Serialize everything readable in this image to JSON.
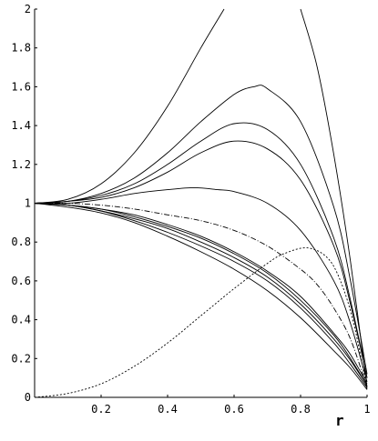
{
  "chart_data": {
    "type": "line",
    "title": "",
    "xlabel": "r",
    "ylabel": "",
    "xlim": [
      0,
      1
    ],
    "ylim": [
      0,
      2
    ],
    "grid": false,
    "legend": "none",
    "x_ticks": [
      {
        "value": 0.2,
        "label": "0.2"
      },
      {
        "value": 0.4,
        "label": "0.4"
      },
      {
        "value": 0.6,
        "label": "0.6"
      },
      {
        "value": 0.8,
        "label": "0.8"
      },
      {
        "value": 1,
        "label": "1"
      }
    ],
    "y_ticks": [
      {
        "value": 0,
        "label": "0"
      },
      {
        "value": 0.2,
        "label": "0.2"
      },
      {
        "value": 0.4,
        "label": "0.4"
      },
      {
        "value": 0.6,
        "label": "0.6"
      },
      {
        "value": 0.8,
        "label": "0.8"
      },
      {
        "value": 1,
        "label": "1"
      },
      {
        "value": 1.2,
        "label": "1.2"
      },
      {
        "value": 1.4,
        "label": "1.4"
      },
      {
        "value": 1.6,
        "label": "1.6"
      },
      {
        "value": 1.8,
        "label": "1.8"
      },
      {
        "value": 2,
        "label": "2"
      }
    ],
    "series": [
      {
        "style": "solid",
        "x": [
          0,
          0.1,
          0.2,
          0.3,
          0.4,
          0.5,
          0.57
        ],
        "y": [
          1,
          1.02,
          1.1,
          1.26,
          1.5,
          1.8,
          2.0
        ]
      },
      {
        "style": "solid",
        "x": [
          0.8,
          0.85,
          0.9,
          0.95,
          1.0
        ],
        "y": [
          2.0,
          1.7,
          1.25,
          0.7,
          0.05
        ]
      },
      {
        "style": "solid",
        "x": [
          0,
          0.1,
          0.2,
          0.3,
          0.4,
          0.5,
          0.6,
          0.66,
          0.7,
          0.8,
          0.9,
          0.95,
          1.0
        ],
        "y": [
          1,
          1.01,
          1.05,
          1.13,
          1.26,
          1.42,
          1.56,
          1.6,
          1.59,
          1.42,
          0.98,
          0.6,
          0.12
        ]
      },
      {
        "style": "solid",
        "x": [
          0,
          0.1,
          0.2,
          0.3,
          0.4,
          0.5,
          0.6,
          0.7,
          0.8,
          0.9,
          0.95,
          1.0
        ],
        "y": [
          1,
          1.01,
          1.04,
          1.1,
          1.2,
          1.32,
          1.41,
          1.38,
          1.2,
          0.82,
          0.5,
          0.1
        ]
      },
      {
        "style": "solid",
        "x": [
          0,
          0.1,
          0.2,
          0.3,
          0.4,
          0.5,
          0.6,
          0.7,
          0.8,
          0.9,
          0.95,
          1.0
        ],
        "y": [
          1,
          1.01,
          1.03,
          1.08,
          1.16,
          1.26,
          1.32,
          1.28,
          1.12,
          0.78,
          0.48,
          0.1
        ]
      },
      {
        "style": "solid",
        "x": [
          0,
          0.1,
          0.2,
          0.3,
          0.4,
          0.48,
          0.55,
          0.6,
          0.7,
          0.8,
          0.9,
          0.95,
          1.0
        ],
        "y": [
          1,
          1.0,
          1.02,
          1.05,
          1.07,
          1.08,
          1.07,
          1.06,
          1.0,
          0.86,
          0.6,
          0.38,
          0.08
        ]
      },
      {
        "style": "dashdot",
        "x": [
          0,
          0.1,
          0.2,
          0.3,
          0.4,
          0.5,
          0.6,
          0.7,
          0.8,
          0.85,
          0.9,
          0.95,
          1.0
        ],
        "y": [
          1,
          1.0,
          0.99,
          0.97,
          0.94,
          0.91,
          0.86,
          0.78,
          0.66,
          0.58,
          0.46,
          0.3,
          0.05
        ]
      },
      {
        "style": "solid",
        "x": [
          0,
          0.1,
          0.2,
          0.3,
          0.4,
          0.5,
          0.6,
          0.7,
          0.8,
          0.9,
          0.95,
          1.0
        ],
        "y": [
          1,
          0.99,
          0.97,
          0.94,
          0.89,
          0.83,
          0.75,
          0.65,
          0.52,
          0.33,
          0.22,
          0.07
        ]
      },
      {
        "style": "solid",
        "x": [
          0,
          0.1,
          0.2,
          0.3,
          0.4,
          0.5,
          0.6,
          0.7,
          0.8,
          0.9,
          0.95,
          1.0
        ],
        "y": [
          1,
          0.99,
          0.97,
          0.93,
          0.88,
          0.82,
          0.74,
          0.64,
          0.5,
          0.32,
          0.2,
          0.06
        ]
      },
      {
        "style": "solid",
        "x": [
          0,
          0.1,
          0.2,
          0.3,
          0.4,
          0.5,
          0.6,
          0.7,
          0.8,
          0.9,
          0.95,
          1.0
        ],
        "y": [
          1,
          0.99,
          0.96,
          0.92,
          0.87,
          0.8,
          0.72,
          0.62,
          0.48,
          0.3,
          0.19,
          0.06
        ]
      },
      {
        "style": "solid",
        "x": [
          0,
          0.1,
          0.2,
          0.3,
          0.4,
          0.5,
          0.6,
          0.7,
          0.8,
          0.9,
          0.95,
          1.0
        ],
        "y": [
          1,
          0.99,
          0.96,
          0.91,
          0.85,
          0.78,
          0.7,
          0.6,
          0.46,
          0.28,
          0.17,
          0.05
        ]
      },
      {
        "style": "solid",
        "x": [
          0,
          0.1,
          0.2,
          0.3,
          0.4,
          0.5,
          0.6,
          0.7,
          0.8,
          0.9,
          0.95,
          1.0
        ],
        "y": [
          1,
          0.98,
          0.95,
          0.9,
          0.83,
          0.75,
          0.66,
          0.55,
          0.41,
          0.24,
          0.15,
          0.04
        ]
      },
      {
        "style": "dashed",
        "x": [
          0,
          0.1,
          0.2,
          0.3,
          0.4,
          0.5,
          0.6,
          0.7,
          0.75,
          0.82,
          0.88,
          0.92,
          0.96,
          1.0
        ],
        "y": [
          0.0,
          0.02,
          0.07,
          0.16,
          0.28,
          0.42,
          0.56,
          0.69,
          0.74,
          0.77,
          0.72,
          0.6,
          0.38,
          0.04
        ]
      }
    ]
  }
}
